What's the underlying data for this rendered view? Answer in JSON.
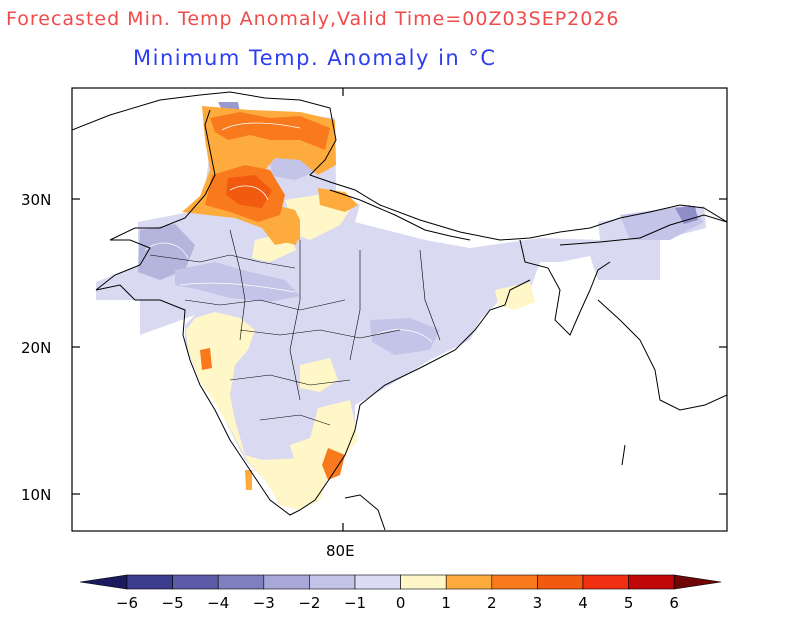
{
  "title": "Forecasted Min. Temp Anomaly,Valid Time=00Z03SEP2026",
  "subtitle": "Minimum Temp. Anomaly in °C",
  "axes": {
    "y_ticks": [
      "30N",
      "20N",
      "10N"
    ],
    "x_ticks": [
      "80E"
    ]
  },
  "colorbar": {
    "labels": [
      "−6",
      "−5",
      "−4",
      "−3",
      "−2",
      "−1",
      "0",
      "1",
      "2",
      "3",
      "4",
      "5",
      "6"
    ],
    "colors": [
      "#1a1a5e",
      "#3d3d8f",
      "#5b5ba8",
      "#7f7fbf",
      "#a7a7d8",
      "#c4c4e8",
      "#dcdcf4",
      "#fff7c8",
      "#fcab3c",
      "#f97a1c",
      "#f25a10",
      "#f03010",
      "#c00808",
      "#6e0606"
    ]
  },
  "colors": {
    "title": "#f04a4a",
    "subtitle": "#2d3ef2",
    "negative_anomaly": "#d6d6f0",
    "near_zero": "#fff7c8",
    "positive_anomaly": "#fca24a"
  }
}
